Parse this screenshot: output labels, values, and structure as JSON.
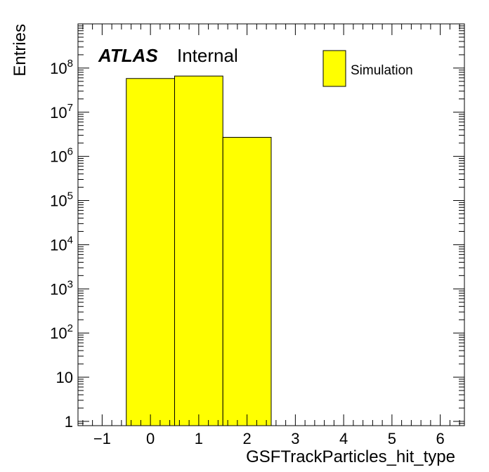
{
  "chart_data": {
    "type": "bar",
    "subtype": "histogram",
    "title": "",
    "xlabel": "GSFTrackParticles_hit_type",
    "ylabel": "Entries",
    "xlim": [
      -1.5,
      6.5
    ],
    "ylim": [
      0.8,
      1000000000
    ],
    "yscale": "log",
    "grid": false,
    "legend_position": "top-right",
    "bins": [
      {
        "low": -0.5,
        "high": 0.5,
        "value": 58000000
      },
      {
        "low": 0.5,
        "high": 1.5,
        "value": 66000000
      },
      {
        "low": 1.5,
        "high": 2.5,
        "value": 2700000
      }
    ],
    "series": [
      {
        "name": "Simulation",
        "color": "#ffff00"
      }
    ],
    "x_ticks": [
      {
        "value": -1,
        "label": "−1"
      },
      {
        "value": 0,
        "label": "0"
      },
      {
        "value": 1,
        "label": "1"
      },
      {
        "value": 2,
        "label": "2"
      },
      {
        "value": 3,
        "label": "3"
      },
      {
        "value": 4,
        "label": "4"
      },
      {
        "value": 5,
        "label": "5"
      },
      {
        "value": 6,
        "label": "6"
      }
    ],
    "y_ticks": [
      {
        "value": 1,
        "base": "1",
        "exp": ""
      },
      {
        "value": 10,
        "base": "10",
        "exp": ""
      },
      {
        "value": 100,
        "base": "10",
        "exp": "2"
      },
      {
        "value": 1000,
        "base": "10",
        "exp": "3"
      },
      {
        "value": 10000,
        "base": "10",
        "exp": "4"
      },
      {
        "value": 100000,
        "base": "10",
        "exp": "5"
      },
      {
        "value": 1000000,
        "base": "10",
        "exp": "6"
      },
      {
        "value": 10000000,
        "base": "10",
        "exp": "7"
      },
      {
        "value": 100000000,
        "base": "10",
        "exp": "8"
      }
    ],
    "annotation": {
      "experiment": "ATLAS",
      "status": "Internal"
    },
    "bar_color": "#ffff00",
    "edge_color": "#000000"
  }
}
